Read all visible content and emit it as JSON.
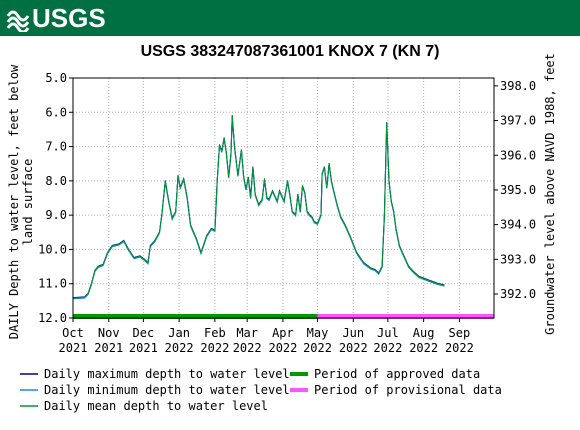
{
  "header": {
    "logo_text": "USGS",
    "color": "#006f41"
  },
  "chart_data": {
    "type": "line",
    "title": "USGS 383247087361001 KNOX 7 (KN 7)",
    "ylabel_left": "DAILY Depth to water level, feet below land surface",
    "ylabel_left_lines": [
      "DAILY Depth to water level, feet below",
      "land surface"
    ],
    "ylabel_right": "Groundwater level above NAVD 1988, feet",
    "left_axis": {
      "min": 5.0,
      "max": 12.0,
      "inverted": true,
      "ticks": [
        "5.0",
        "6.0",
        "7.0",
        "8.0",
        "9.0",
        "10.0",
        "11.0",
        "12.0"
      ]
    },
    "right_axis": {
      "min": 392.0,
      "max": 398.0,
      "ticks": [
        "398.0",
        "397.0",
        "396.0",
        "395.0",
        "394.0",
        "393.0",
        "392.0"
      ]
    },
    "x_ticks": [
      {
        "month": "Oct",
        "year": "2021"
      },
      {
        "month": "Nov",
        "year": "2021"
      },
      {
        "month": "Dec",
        "year": "2021"
      },
      {
        "month": "Jan",
        "year": "2022"
      },
      {
        "month": "Feb",
        "year": "2022"
      },
      {
        "month": "Mar",
        "year": "2022"
      },
      {
        "month": "Apr",
        "year": "2022"
      },
      {
        "month": "May",
        "year": "2022"
      },
      {
        "month": "Jun",
        "year": "2022"
      },
      {
        "month": "Jul",
        "year": "2022"
      },
      {
        "month": "Aug",
        "year": "2022"
      },
      {
        "month": "Sep",
        "year": "2022"
      }
    ],
    "x_month_days": [
      0,
      31,
      61,
      92,
      123,
      151,
      182,
      212,
      243,
      273,
      304,
      335
    ],
    "x_range_days": [
      0,
      365
    ],
    "grid": true,
    "series": [
      {
        "name": "Daily maximum depth to water level",
        "color": "#00008b"
      },
      {
        "name": "Daily minimum depth to water level",
        "color": "#1f8fd0"
      },
      {
        "name": "Daily mean depth to water level",
        "color": "#009a2e"
      }
    ],
    "depth_points": [
      [
        0,
        11.42
      ],
      [
        10,
        11.4
      ],
      [
        13,
        11.3
      ],
      [
        16,
        11.0
      ],
      [
        19,
        10.62
      ],
      [
        22,
        10.5
      ],
      [
        26,
        10.45
      ],
      [
        30,
        10.1
      ],
      [
        34,
        9.9
      ],
      [
        40,
        9.85
      ],
      [
        44,
        9.75
      ],
      [
        48,
        10.0
      ],
      [
        53,
        10.25
      ],
      [
        58,
        10.2
      ],
      [
        62,
        10.3
      ],
      [
        65,
        10.4
      ],
      [
        67,
        9.9
      ],
      [
        71,
        9.75
      ],
      [
        75,
        9.5
      ],
      [
        77,
        9.0
      ],
      [
        80,
        8.0
      ],
      [
        83,
        8.6
      ],
      [
        86,
        9.1
      ],
      [
        89,
        8.9
      ],
      [
        91,
        7.85
      ],
      [
        93,
        8.2
      ],
      [
        96,
        7.95
      ],
      [
        99,
        8.5
      ],
      [
        102,
        9.3
      ],
      [
        107,
        9.7
      ],
      [
        111,
        10.1
      ],
      [
        113,
        9.9
      ],
      [
        116,
        9.6
      ],
      [
        120,
        9.4
      ],
      [
        123,
        9.45
      ],
      [
        125,
        8.0
      ],
      [
        127,
        6.95
      ],
      [
        129,
        7.15
      ],
      [
        131,
        6.75
      ],
      [
        133,
        7.2
      ],
      [
        135,
        7.9
      ],
      [
        137,
        7.2
      ],
      [
        138,
        6.1
      ],
      [
        140,
        7.0
      ],
      [
        143,
        7.85
      ],
      [
        146,
        7.1
      ],
      [
        148,
        7.9
      ],
      [
        150,
        8.25
      ],
      [
        152,
        7.9
      ],
      [
        154,
        8.5
      ],
      [
        156,
        7.6
      ],
      [
        158,
        8.4
      ],
      [
        161,
        8.7
      ],
      [
        164,
        8.55
      ],
      [
        166,
        7.95
      ],
      [
        168,
        8.5
      ],
      [
        170,
        8.55
      ],
      [
        173,
        8.3
      ],
      [
        177,
        8.6
      ],
      [
        179,
        8.3
      ],
      [
        183,
        8.6
      ],
      [
        186,
        8.0
      ],
      [
        188,
        8.4
      ],
      [
        190,
        8.9
      ],
      [
        193,
        9.0
      ],
      [
        195,
        8.4
      ],
      [
        197,
        8.9
      ],
      [
        199,
        8.15
      ],
      [
        201,
        8.35
      ],
      [
        203,
        8.9
      ],
      [
        205,
        9.0
      ],
      [
        207,
        9.05
      ],
      [
        209,
        9.2
      ],
      [
        212,
        9.25
      ],
      [
        215,
        9.0
      ],
      [
        216,
        7.8
      ],
      [
        218,
        7.6
      ],
      [
        220,
        8.2
      ],
      [
        222,
        7.5
      ],
      [
        224,
        8.0
      ],
      [
        226,
        8.3
      ],
      [
        229,
        8.7
      ],
      [
        232,
        9.05
      ],
      [
        236,
        9.3
      ],
      [
        240,
        9.6
      ],
      [
        246,
        10.1
      ],
      [
        252,
        10.4
      ],
      [
        258,
        10.55
      ],
      [
        262,
        10.6
      ],
      [
        265,
        10.7
      ],
      [
        268,
        10.5
      ],
      [
        270,
        9.0
      ],
      [
        272,
        6.3
      ],
      [
        274,
        8.0
      ],
      [
        276,
        8.6
      ],
      [
        278,
        8.9
      ],
      [
        280,
        9.4
      ],
      [
        283,
        9.9
      ],
      [
        287,
        10.2
      ],
      [
        291,
        10.5
      ],
      [
        295,
        10.65
      ],
      [
        300,
        10.8
      ],
      [
        308,
        10.9
      ],
      [
        316,
        11.0
      ],
      [
        322,
        11.05
      ]
    ],
    "approval_periods": [
      {
        "name": "Period of approved data",
        "start_day": 0,
        "end_day": 212,
        "color": "#009a00"
      },
      {
        "name": "Period of provisional data",
        "start_day": 212,
        "end_day": 365,
        "color": "#ff55ff"
      }
    ]
  }
}
